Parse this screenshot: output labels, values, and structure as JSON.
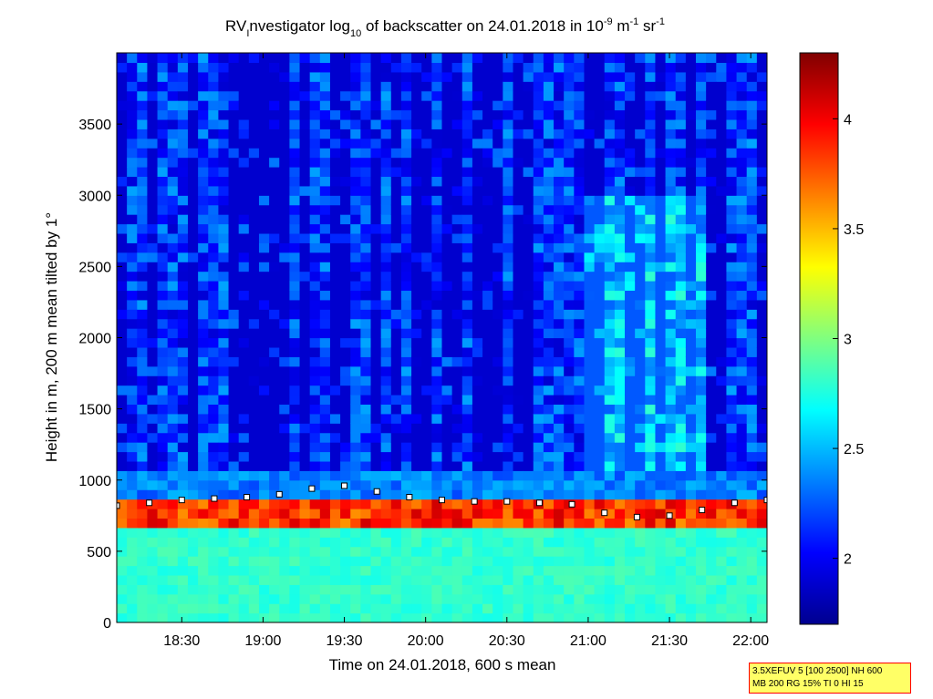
{
  "chart_data": {
    "type": "heatmap",
    "title": {
      "t1": "RV",
      "t1_sub": "I",
      "t2": "nvestigator log",
      "t2_sub": "10",
      "t3": " of backscatter on 24.01.2018 in 10",
      "t3_sup": "-9",
      "t4": " m",
      "t4_sup": "-1",
      "t5": " sr",
      "t5_sup": "-1"
    },
    "xlabel": "Time on 24.01.2018, 600 s mean",
    "ylabel": "Height in m, 200 m mean tilted by 1°",
    "x_ticks": [
      "18:30",
      "19:00",
      "19:30",
      "20:00",
      "20:30",
      "21:00",
      "21:30",
      "22:00"
    ],
    "x_tick_hours": [
      18.5,
      19.0,
      19.5,
      20.0,
      20.5,
      21.0,
      21.5,
      22.0
    ],
    "xlim_hours": [
      18.1,
      22.1
    ],
    "y_ticks": [
      "0",
      "500",
      "1000",
      "1500",
      "2000",
      "2500",
      "3000",
      "3500"
    ],
    "y_tick_values": [
      0,
      500,
      1000,
      1500,
      2000,
      2500,
      3000,
      3500
    ],
    "ylim": [
      0,
      4000
    ],
    "colorbar": {
      "ticks": [
        "2",
        "2.5",
        "3",
        "3.5",
        "4"
      ],
      "tick_values": [
        2.0,
        2.5,
        3.0,
        3.5,
        4.0
      ],
      "range": [
        1.7,
        4.3
      ],
      "colormap": "jet"
    },
    "layers": {
      "boundary_layer_top_m": 820,
      "boundary_layer_value": 2.8,
      "free_troposphere_value": 1.9
    },
    "cloud_base_series": {
      "name": "",
      "x_hours": [
        18.1,
        18.3,
        18.5,
        18.7,
        18.9,
        19.1,
        19.3,
        19.5,
        19.7,
        19.9,
        20.1,
        20.3,
        20.5,
        20.7,
        20.9,
        21.1,
        21.3,
        21.5,
        21.7,
        21.9,
        22.1
      ],
      "y_m": [
        820,
        840,
        860,
        870,
        880,
        900,
        940,
        960,
        920,
        880,
        860,
        850,
        850,
        840,
        830,
        770,
        740,
        750,
        790,
        840,
        860
      ]
    }
  },
  "annotation": {
    "line1": "3.5XEFUV 5 [100 2500] NH 600",
    "line2": "MB 200 RG 15% TI 0 HI 15"
  }
}
